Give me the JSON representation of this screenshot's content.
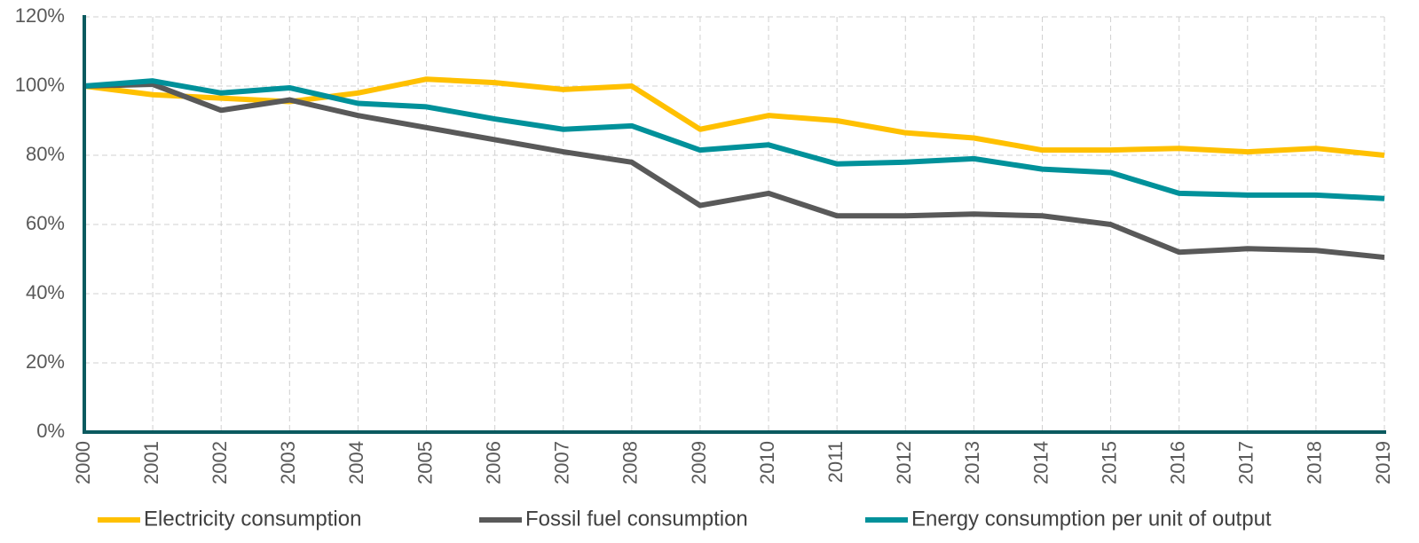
{
  "chart_data": {
    "type": "line",
    "categories": [
      "2000",
      "2001",
      "2002",
      "2003",
      "2004",
      "2005",
      "2006",
      "2007",
      "2008",
      "2009",
      "2010",
      "2011",
      "2012",
      "2013",
      "2014",
      "2015",
      "2016",
      "2017",
      "2018",
      "2019"
    ],
    "series": [
      {
        "name": "Electricity consumption",
        "color": "#ffc000",
        "values": [
          100,
          97.5,
          96.5,
          95.5,
          98,
          102,
          101,
          99,
          100,
          87.5,
          91.5,
          90,
          86.5,
          85,
          81.5,
          81.5,
          82,
          81,
          82,
          80
        ]
      },
      {
        "name": "Fossil fuel consumption",
        "color": "#595959",
        "values": [
          100,
          100.5,
          93,
          96,
          91.5,
          88,
          84.5,
          81,
          78,
          65.5,
          69,
          62.5,
          62.5,
          63,
          62.5,
          60,
          52,
          53,
          52.5,
          50.5
        ]
      },
      {
        "name": "Energy consumption per unit of output",
        "color": "#00919a",
        "values": [
          100,
          101.5,
          98,
          99.5,
          95,
          94,
          90.5,
          87.5,
          88.5,
          81.5,
          83,
          77.5,
          78,
          79,
          76,
          75,
          69,
          68.5,
          68.5,
          67.5
        ]
      }
    ],
    "ylim": [
      0,
      120
    ],
    "yticks": [
      {
        "value": 0,
        "label": "0%"
      },
      {
        "value": 20,
        "label": "20%"
      },
      {
        "value": 40,
        "label": "40%"
      },
      {
        "value": 60,
        "label": "60%"
      },
      {
        "value": 80,
        "label": "80%"
      },
      {
        "value": 100,
        "label": "100%"
      },
      {
        "value": 120,
        "label": "120%"
      }
    ],
    "grid": true,
    "legend": "bottom"
  }
}
